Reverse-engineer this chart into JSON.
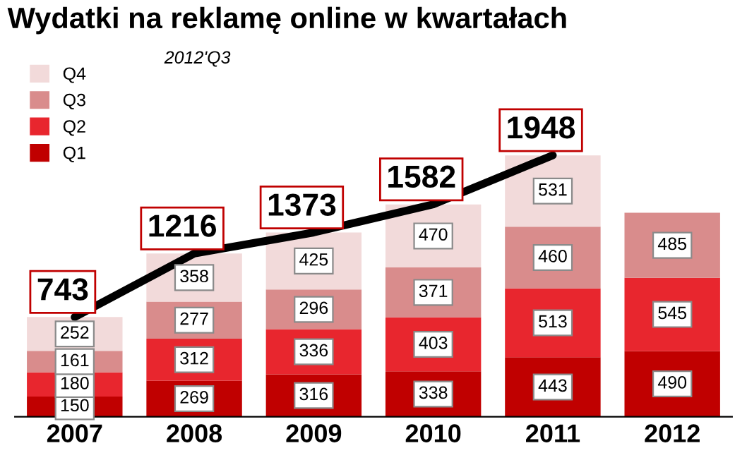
{
  "chart_data": {
    "type": "bar",
    "stacked": true,
    "title": "Wydatki na reklamę online w kwartałach",
    "annotations": [
      "2012'Q3"
    ],
    "categories": [
      "2007",
      "2008",
      "2009",
      "2010",
      "2011",
      "2012"
    ],
    "series": [
      {
        "name": "Q1",
        "color": "#c00000",
        "values": [
          150,
          269,
          316,
          338,
          443,
          490
        ]
      },
      {
        "name": "Q2",
        "color": "#e8262e",
        "values": [
          180,
          312,
          336,
          403,
          513,
          545
        ]
      },
      {
        "name": "Q3",
        "color": "#d98c8c",
        "values": [
          161,
          277,
          296,
          371,
          460,
          485
        ]
      },
      {
        "name": "Q4",
        "color": "#f2dada",
        "values": [
          252,
          358,
          425,
          470,
          531,
          null
        ]
      },
      {
        "type": "line",
        "color": "#000000",
        "values": [
          743,
          1216,
          1373,
          1582,
          1948,
          null
        ],
        "value_labels": [
          "743",
          "1216",
          "1373",
          "1582",
          "1948",
          null
        ]
      }
    ],
    "data_labels": true,
    "legend": "top left",
    "grid": false,
    "tick_labels": "x"
  }
}
